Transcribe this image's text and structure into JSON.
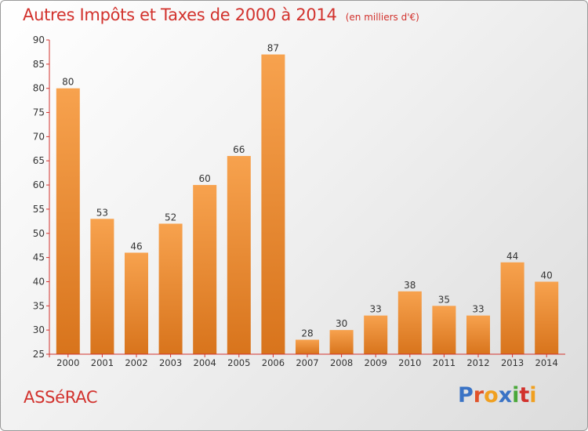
{
  "header": {
    "title": "Autres Impôts et Taxes de 2000 à 2014",
    "subtitle": "(en milliers d'€)"
  },
  "footer": {
    "place": "ASSéRAC",
    "logo_text": "Proxiti",
    "logo_colors": [
      "#3a73c5",
      "#e0522a",
      "#f0a020",
      "#3a73c5",
      "#4aa83a",
      "#d2322d",
      "#f0a020"
    ]
  },
  "colors": {
    "bar_light": "#f7a24e",
    "bar_dark": "#d8741c",
    "axis": "#d2322d",
    "text": "#333333"
  },
  "chart_data": {
    "type": "bar",
    "title": "Autres Impôts et Taxes de 2000 à 2014",
    "subtitle": "(en milliers d'€)",
    "categories": [
      "2000",
      "2001",
      "2002",
      "2003",
      "2004",
      "2005",
      "2006",
      "2007",
      "2008",
      "2009",
      "2010",
      "2011",
      "2012",
      "2013",
      "2014"
    ],
    "values": [
      80,
      53,
      46,
      52,
      60,
      66,
      87,
      28,
      30,
      33,
      38,
      35,
      33,
      44,
      40
    ],
    "ylim": [
      25,
      90
    ],
    "yticks": [
      25,
      30,
      35,
      40,
      45,
      50,
      55,
      60,
      65,
      70,
      75,
      80,
      85,
      90
    ],
    "grid": false,
    "legend": "none"
  }
}
